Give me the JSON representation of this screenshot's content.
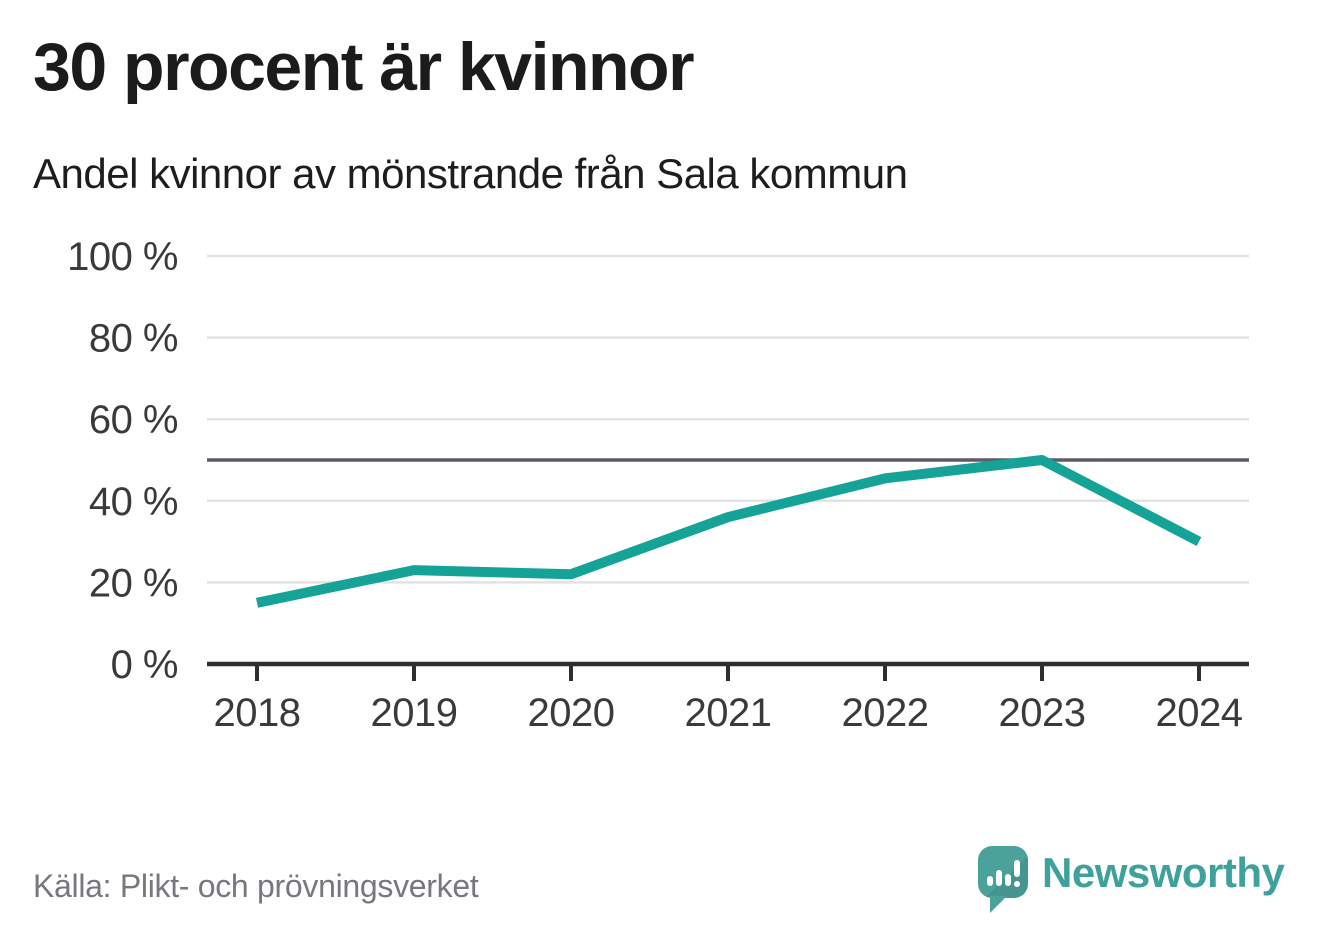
{
  "header": {
    "title": "30 procent är kvinnor",
    "subtitle": "Andel kvinnor av mönstrande från Sala kommun"
  },
  "footer": {
    "source": "Källa: Plikt- och prövningsverket",
    "brand": "Newsworthy"
  },
  "colors": {
    "line": "#15a398",
    "refline": "#5c5c66",
    "grid": "#e2e2e2",
    "axis": "#2e2e2e",
    "tick_label": "#3a3a3a",
    "brand_teal": "#3fa19b",
    "logo_bubble": "#4aa29b"
  },
  "chart_data": {
    "type": "line",
    "categories": [
      "2018",
      "2019",
      "2020",
      "2021",
      "2022",
      "2023",
      "2024"
    ],
    "series": [
      {
        "name": "Andel kvinnor av mönstrande",
        "values": [
          15,
          23,
          22,
          36,
          45.5,
          50,
          30
        ]
      }
    ],
    "title": "30 procent är kvinnor",
    "subtitle": "Andel kvinnor av mönstrande från Sala kommun",
    "xlabel": "",
    "ylabel": "",
    "ylim": [
      0,
      100
    ],
    "yticks": [
      {
        "value": 0,
        "label": "0 %"
      },
      {
        "value": 20,
        "label": "20 %"
      },
      {
        "value": 40,
        "label": "40 %"
      },
      {
        "value": 60,
        "label": "60 %"
      },
      {
        "value": 80,
        "label": "80 %"
      },
      {
        "value": 100,
        "label": "100 %"
      }
    ],
    "refline": 50,
    "grid": true,
    "legend": "none"
  }
}
